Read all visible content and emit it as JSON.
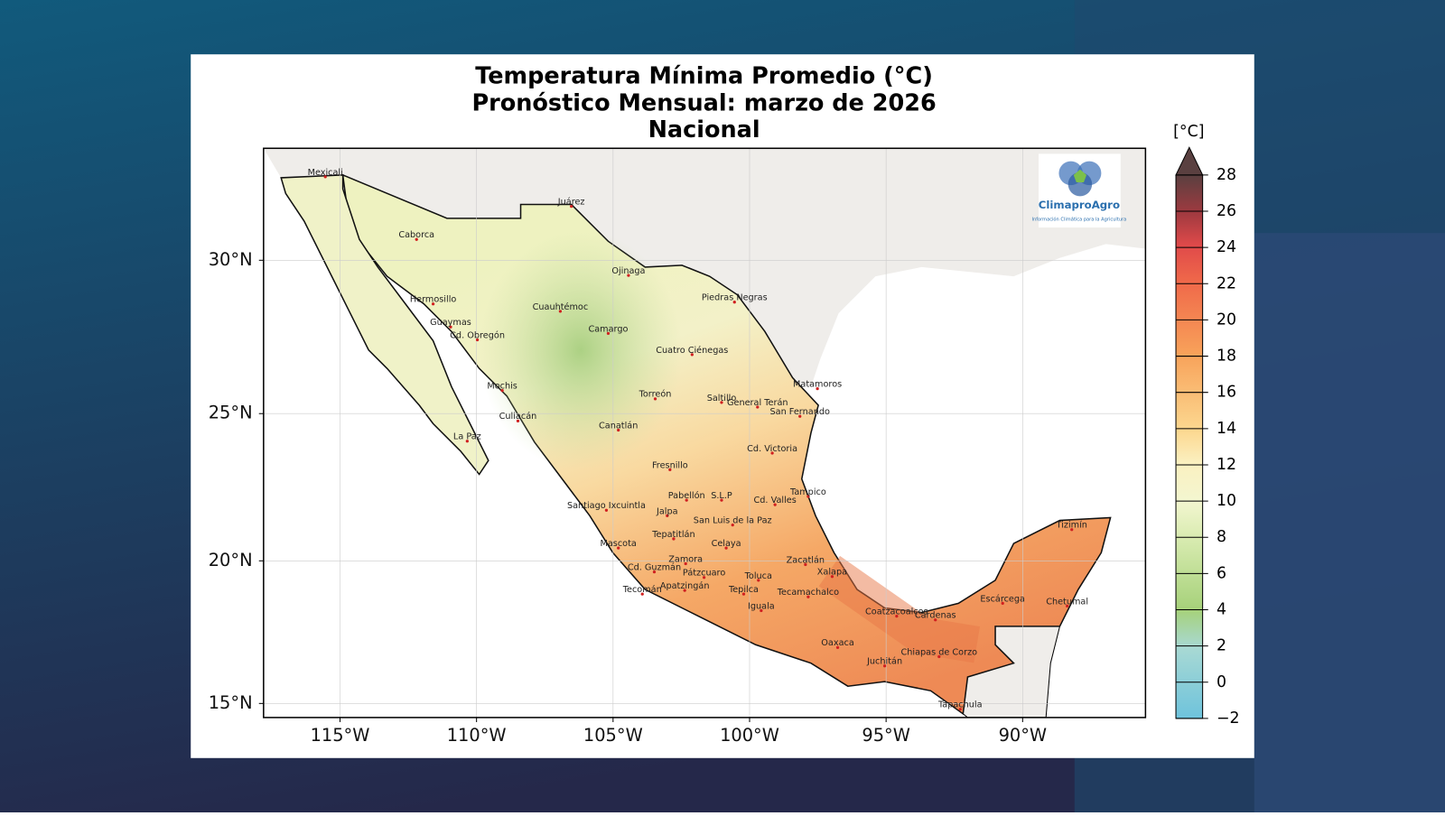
{
  "title": [
    "Temperatura Mínima Promedio (°C)",
    "Pronóstico Mensual: marzo de 2026",
    "Nacional"
  ],
  "map": {
    "xlim": [
      -117.8,
      -85.5
    ],
    "ylim": [
      14.5,
      33.5
    ],
    "xticks": [
      {
        "value": -115,
        "label": "115°W"
      },
      {
        "value": -110,
        "label": "110°W"
      },
      {
        "value": -105,
        "label": "105°W"
      },
      {
        "value": -100,
        "label": "100°W"
      },
      {
        "value": -95,
        "label": "95°W"
      },
      {
        "value": -90,
        "label": "90°W"
      }
    ],
    "yticks": [
      {
        "value": 15,
        "label": "15°N"
      },
      {
        "value": 20,
        "label": "20°N"
      },
      {
        "value": 25,
        "label": "25°N"
      },
      {
        "value": 30,
        "label": "30°N"
      }
    ],
    "grid": true,
    "cities": [
      "Mexicali",
      "Juárez",
      "Caborca",
      "Ojinaga",
      "Hermosillo",
      "Cuauhtémoc",
      "Piedras Negras",
      "Guaymas",
      "Camargo",
      "Cd. Obregón",
      "Cuatro Ciénegas",
      "Mochis",
      "Matamoros",
      "Torreón",
      "Saltillo",
      "General Terán",
      "San Fernando",
      "Culiacán",
      "Canatlán",
      "La Paz",
      "Cd. Victoria",
      "Fresnillo",
      "Tampico",
      "Pabellón",
      "S.L.P",
      "Cd. Valles",
      "Santiago Ixcuintla",
      "Jalpa",
      "San Luis de la Paz",
      "Tizimín",
      "Tepatitlán",
      "Celaya",
      "Mascota",
      "Zamora",
      "Zacatlán",
      "Cd. Guzmán",
      "Xalapa",
      "Pátzcuaro",
      "Toluca",
      "Apatzingán",
      "Tecomán",
      "Tepilca",
      "Tecamachalco",
      "Iguala",
      "Escárcega",
      "Chetumal",
      "Coatzacoalcos",
      "Cárdenas",
      "Oaxaca",
      "Chiapas de Corzo",
      "Juchitán",
      "Tapachula"
    ]
  },
  "logo": {
    "name": "ClimaproAgro",
    "tagline": "Información Climática para la Agricultura"
  },
  "colorbar": {
    "label": "[°C]",
    "lim": [
      -2,
      28
    ],
    "ticks": [
      {
        "value": -2,
        "label": "−2"
      },
      0,
      2,
      4,
      6,
      8,
      10,
      12,
      14,
      16,
      18,
      20,
      22,
      24,
      26,
      28
    ]
  }
}
